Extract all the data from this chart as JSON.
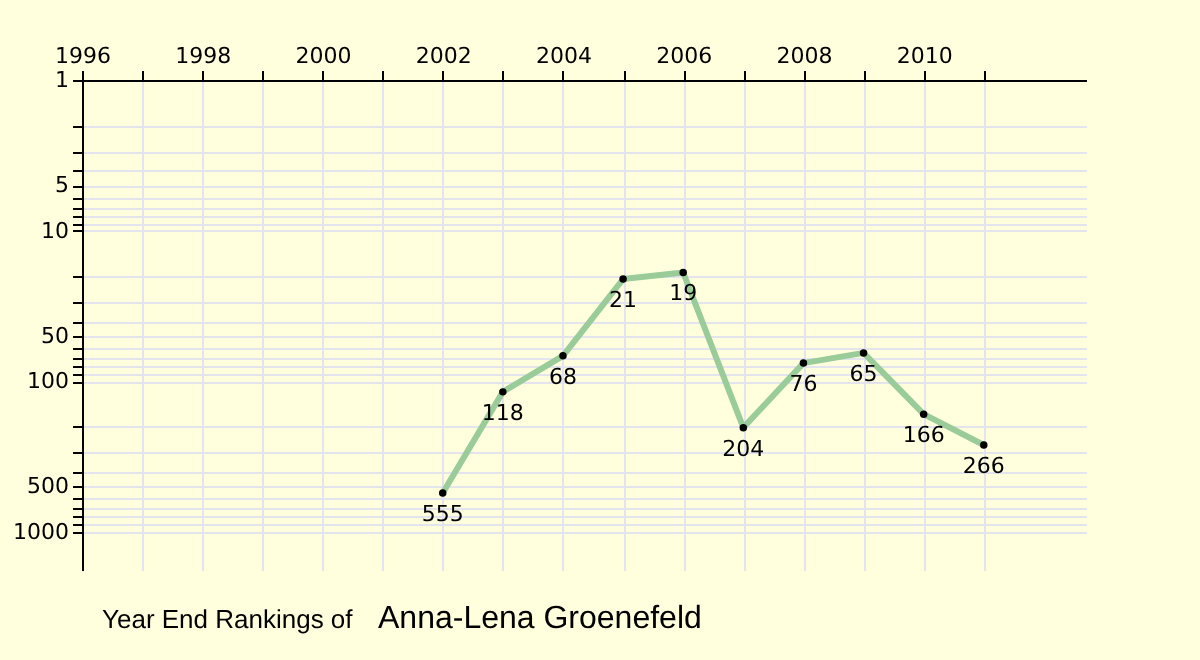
{
  "chart_data": {
    "type": "line",
    "title": "Year End Rankings of",
    "subtitle": "Anna-Lena Groenefeld",
    "x": [
      2002,
      2003,
      2004,
      2005,
      2006,
      2007,
      2008,
      2009,
      2010,
      2011
    ],
    "series": [
      {
        "color": "#99cc99",
        "values": [
          555,
          118,
          68,
          21,
          19,
          204,
          76,
          65,
          166,
          266
        ]
      }
    ],
    "data_labels": true,
    "marker": "circle",
    "line_style": "solid",
    "log": true,
    "grid": true,
    "xlim": [
      1996,
      2012.7
    ],
    "ylim": [
      1800,
      1
    ],
    "xticks": [
      1996,
      {
        "value": 1997,
        "label": null
      },
      1998,
      {
        "value": 1999,
        "label": null
      },
      2000,
      {
        "value": 2001,
        "label": null
      },
      2002,
      {
        "value": 2003,
        "label": null
      },
      2004,
      {
        "value": 2005,
        "label": null
      },
      2006,
      {
        "value": 2007,
        "label": null
      },
      2008,
      {
        "value": 2009,
        "label": null
      },
      2010,
      {
        "value": 2011,
        "label": null
      }
    ],
    "yticks": [
      1,
      {
        "value": 2,
        "label": null
      },
      {
        "value": 3,
        "label": null
      },
      {
        "value": 4,
        "label": null
      },
      5,
      {
        "value": 6,
        "label": null
      },
      {
        "value": 7,
        "label": null
      },
      {
        "value": 8,
        "label": null
      },
      {
        "value": 9,
        "label": null
      },
      10,
      {
        "value": 20,
        "label": null
      },
      {
        "value": 30,
        "label": null
      },
      {
        "value": 40,
        "label": null
      },
      50,
      {
        "value": 60,
        "label": null
      },
      {
        "value": 70,
        "label": null
      },
      {
        "value": 80,
        "label": null
      },
      {
        "value": 90,
        "label": null
      },
      100,
      {
        "value": 200,
        "label": null
      },
      {
        "value": 300,
        "label": null
      },
      {
        "value": 400,
        "label": null
      },
      500,
      {
        "value": 600,
        "label": null
      },
      {
        "value": 700,
        "label": null
      },
      {
        "value": 800,
        "label": null
      },
      {
        "value": 900,
        "label": null
      },
      1000
    ]
  }
}
